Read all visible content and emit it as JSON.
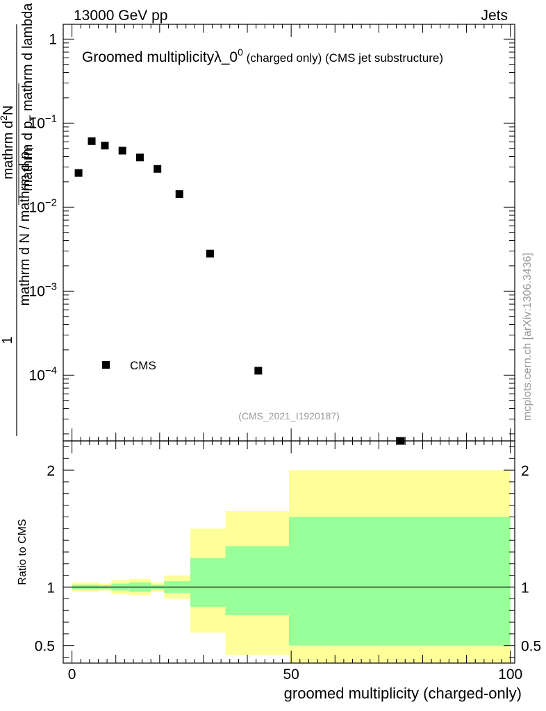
{
  "header": {
    "energy_label": "13000 GeV pp",
    "category_label": "Jets"
  },
  "main_plot": {
    "title_main": "Groomed multiplicity",
    "title_lambda": "λ_0",
    "title_sup": "0",
    "title_rest": " (charged only) (CMS jet substructure)",
    "ylabel_1": "1",
    "ylabel_inner": "mathrm d N / mathrm d p",
    "ylabel_inner_sub": "T",
    "ylabel_frac_num": "mathrm d",
    "ylabel_frac_num_sup": "2",
    "ylabel_frac_num_N": "N",
    "ylabel_frac_den": "mathrm d p",
    "ylabel_frac_den_sub": "T",
    "ylabel_frac_den_rest": " mathrm d lambda",
    "analysis_id": "(CMS_2021_I1920187)",
    "watermark": "mcplots.cern.ch [arXiv:1306.3436]"
  },
  "ratio_plot": {
    "ylabel": "Ratio to CMS",
    "xlabel": "groomed multiplicity (charged-only)"
  },
  "colors": {
    "data_marker": "#000000",
    "band_outer": "#ffff99",
    "band_inner": "#99ff99",
    "analysis_text": "#999999"
  },
  "chart_data": [
    {
      "type": "scatter",
      "y_scale": "log",
      "xlim": [
        -2,
        101
      ],
      "ylim": [
        1.65e-05,
        1.5
      ],
      "x_ticks": [
        0,
        50,
        100
      ],
      "y_major_ticks": [
        1,
        0.1,
        0.01,
        0.001,
        0.0001
      ],
      "y_tick_labels": [
        {
          "mantissa": "1",
          "exp": ""
        },
        {
          "mantissa": "10",
          "exp": "−1"
        },
        {
          "mantissa": "10",
          "exp": "−2"
        },
        {
          "mantissa": "10",
          "exp": "−3"
        },
        {
          "mantissa": "10",
          "exp": "−4"
        }
      ],
      "legend": {
        "entries": [
          "CMS"
        ],
        "location": "lower-left"
      },
      "series": [
        {
          "name": "CMS",
          "points": [
            {
              "x": 1.5,
              "y": 0.0255
            },
            {
              "x": 4.5,
              "y": 0.061
            },
            {
              "x": 7.5,
              "y": 0.054
            },
            {
              "x": 11.5,
              "y": 0.047
            },
            {
              "x": 15.5,
              "y": 0.039
            },
            {
              "x": 19.5,
              "y": 0.0285
            },
            {
              "x": 24.5,
              "y": 0.0143
            },
            {
              "x": 31.5,
              "y": 0.0028
            },
            {
              "x": 42.5,
              "y": 0.000113
            },
            {
              "x": 75,
              "y": 1.65e-05
            }
          ]
        }
      ]
    },
    {
      "type": "area",
      "xlim": [
        -2,
        101
      ],
      "ylim": [
        0.35,
        2.25
      ],
      "x_ticks": [
        0,
        50,
        100
      ],
      "y_ticks": [
        0.5,
        1,
        2
      ],
      "y_tick_labels": [
        "0.5",
        "1",
        "2"
      ],
      "reference_line": 1,
      "bins": [
        {
          "lo": 0,
          "hi": 6,
          "outer": [
            0.96,
            1.04
          ],
          "inner": [
            0.98,
            1.02
          ]
        },
        {
          "lo": 6,
          "hi": 9,
          "outer": [
            0.97,
            1.03
          ],
          "inner": [
            0.985,
            1.015
          ]
        },
        {
          "lo": 9,
          "hi": 13,
          "outer": [
            0.94,
            1.06
          ],
          "inner": [
            0.97,
            1.03
          ]
        },
        {
          "lo": 13,
          "hi": 18,
          "outer": [
            0.93,
            1.07
          ],
          "inner": [
            0.96,
            1.04
          ]
        },
        {
          "lo": 18,
          "hi": 21,
          "outer": [
            0.96,
            1.04
          ],
          "inner": [
            0.98,
            1.02
          ]
        },
        {
          "lo": 21,
          "hi": 27,
          "outer": [
            0.9,
            1.1
          ],
          "inner": [
            0.95,
            1.05
          ]
        },
        {
          "lo": 27,
          "hi": 35,
          "outer": [
            0.61,
            1.5
          ],
          "inner": [
            0.83,
            1.25
          ]
        },
        {
          "lo": 35,
          "hi": 49.5,
          "outer": [
            0.42,
            1.65
          ],
          "inner": [
            0.76,
            1.35
          ]
        },
        {
          "lo": 49.5,
          "hi": 100,
          "outer": [
            0.35,
            2.0
          ],
          "inner": [
            0.5,
            1.6
          ]
        }
      ]
    }
  ]
}
